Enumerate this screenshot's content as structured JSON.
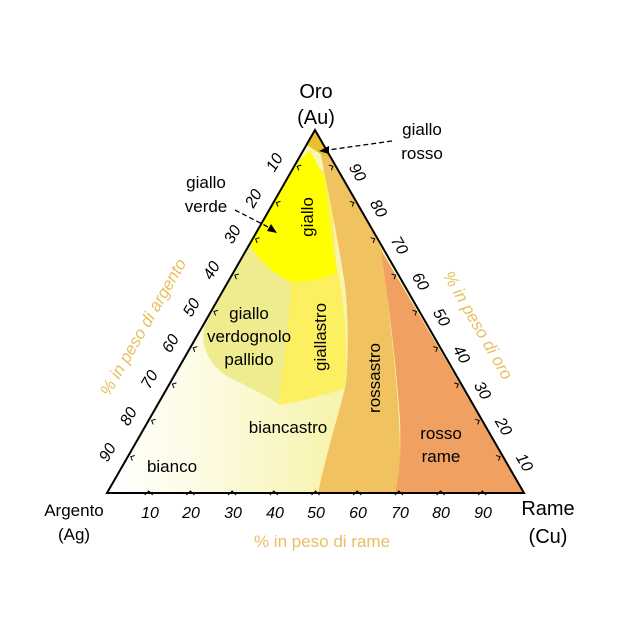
{
  "vertices": {
    "top": [
      "Oro",
      "(Au)"
    ],
    "left": [
      "Argento",
      "(Ag)"
    ],
    "right": [
      "Rame",
      "(Cu)"
    ]
  },
  "axes": {
    "bottom_title": "% in peso di rame",
    "left_title": "% in peso di argento",
    "right_title": "% in peso di oro"
  },
  "ticks": {
    "bottom": [
      "10",
      "20",
      "30",
      "40",
      "50",
      "60",
      "70",
      "80",
      "90"
    ],
    "left": [
      "90",
      "80",
      "70",
      "60",
      "50",
      "40",
      "30",
      "20",
      "10"
    ],
    "right": [
      "90",
      "80",
      "70",
      "60",
      "50",
      "40",
      "30",
      "20",
      "10"
    ]
  },
  "regions": {
    "giallo": "giallo",
    "giallo_verde": [
      "giallo",
      "verde"
    ],
    "giallo_rosso": [
      "giallo",
      "rosso"
    ],
    "giallo_verdognolo_pallido": [
      "giallo",
      "verdognolo",
      "pallido"
    ],
    "giallastro": "giallastro",
    "rossastro": "rossastro",
    "biancastro": "biancastro",
    "bianco": "bianco",
    "rosso_rame": [
      "rosso",
      "rame"
    ]
  },
  "colors": {
    "axis_title": "#e8c060",
    "giallo": "#ffff00",
    "giallastro": "#fef060",
    "rossastro": "#f0c060",
    "rosso_rame": "#f0a060",
    "verdognolo": "#eeee90",
    "biancastro": "#f8f6b8"
  }
}
